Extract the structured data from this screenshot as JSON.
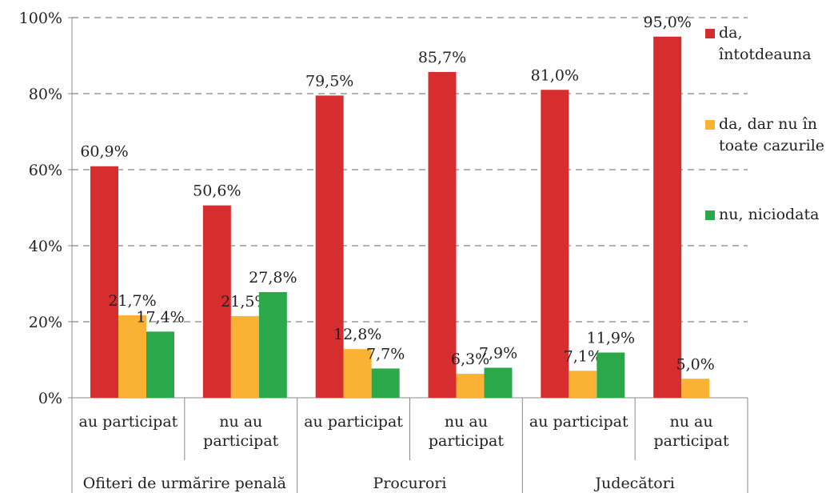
{
  "chart_data": {
    "type": "bar",
    "categories": [
      "au participat",
      "nu au participat",
      "au participat",
      "nu au participat",
      "au participat",
      "nu au participat"
    ],
    "groups": [
      "Ofiteri de urmărire penală",
      "Procurori",
      "Judecători"
    ],
    "series": [
      {
        "name": "da, întotdeauna",
        "color": "#d62d2f",
        "values": [
          60.9,
          50.6,
          79.5,
          85.7,
          81.0,
          95.0
        ],
        "value_labels": [
          "60,9%",
          "50,6%",
          "79,5%",
          "85,7%",
          "81,0%",
          "95,0%"
        ]
      },
      {
        "name": "da, dar nu în toate cazurile",
        "color": "#f9b234",
        "values": [
          21.7,
          21.5,
          12.8,
          6.3,
          7.1,
          5.0
        ],
        "value_labels": [
          "21,7%",
          "21,5%",
          "12,8%",
          "6,3%",
          "7,1%",
          "5,0%"
        ]
      },
      {
        "name": "nu, niciodata",
        "color": "#2aa84a",
        "values": [
          17.4,
          27.8,
          7.7,
          7.9,
          11.9,
          null
        ],
        "value_labels": [
          "17,4%",
          "27,8%",
          "7,7%",
          "7,9%",
          "11,9%",
          null
        ]
      }
    ],
    "ylim": [
      0,
      100
    ],
    "yticks": [
      {
        "value": 0,
        "label": "0%"
      },
      {
        "value": 20,
        "label": "20%"
      },
      {
        "value": 40,
        "label": "40%"
      },
      {
        "value": 60,
        "label": "60%"
      },
      {
        "value": 80,
        "label": "80%"
      },
      {
        "value": 100,
        "label": "100%"
      }
    ],
    "grid": true,
    "legend": "right"
  }
}
